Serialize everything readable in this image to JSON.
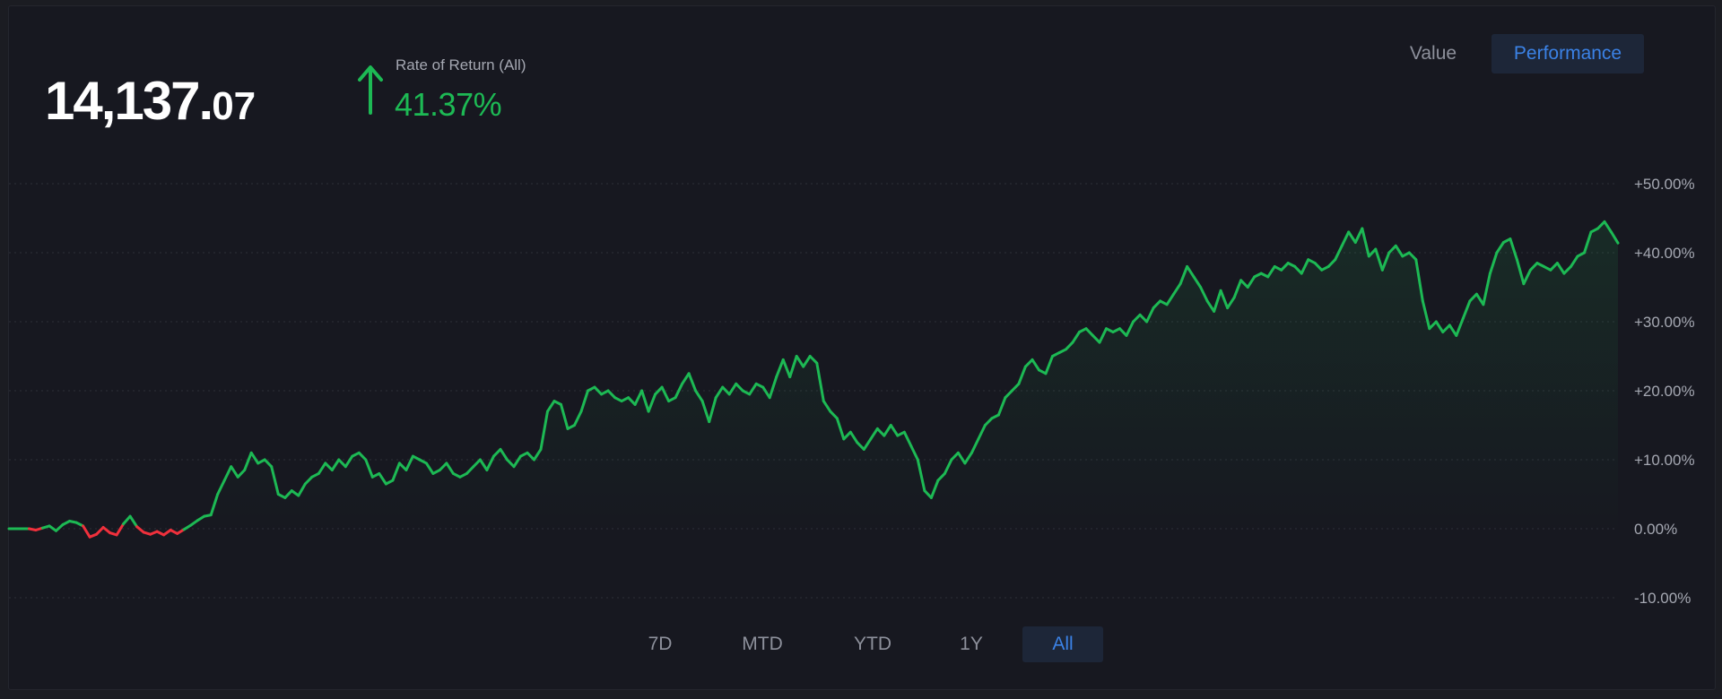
{
  "header": {
    "value_int": "14,137.",
    "value_dec": "07",
    "ror_label": "Rate of Return (All)",
    "ror_value": "41.37%",
    "trend": "up"
  },
  "view_toggle": {
    "value_label": "Value",
    "performance_label": "Performance",
    "selected": "Performance"
  },
  "ranges": {
    "d7": "7D",
    "mtd": "MTD",
    "ytd": "YTD",
    "y1": "1Y",
    "all": "All",
    "selected": "All"
  },
  "colors": {
    "positive": "#1db954",
    "negative": "#f0303c",
    "accent": "#3b82e6",
    "background": "#171820",
    "gridline": "#2e3039",
    "tick_text": "#a5a8b2"
  },
  "chart_data": {
    "type": "area",
    "title": "",
    "xlabel": "",
    "ylabel": "",
    "y_unit": "%",
    "ylim": [
      -10,
      50
    ],
    "y_ticks": [
      "+50.00%",
      "+40.00%",
      "+30.00%",
      "+20.00%",
      "+10.00%",
      "0.00%",
      "-10.00%"
    ],
    "y_tick_values": [
      50,
      40,
      30,
      20,
      10,
      0,
      -10
    ],
    "grid": true,
    "grid_style": "dotted",
    "axis_position": "right",
    "baseline": 0,
    "series": [
      {
        "values": [
          0,
          0,
          0,
          0,
          -0.2,
          0.1,
          0.4,
          -0.3,
          0.6,
          1.1,
          0.9,
          0.4,
          -1.2,
          -0.8,
          0.2,
          -0.6,
          -0.9,
          0.7,
          1.8,
          0.3,
          -0.5,
          -0.8,
          -0.4,
          -0.9,
          -0.2,
          -0.7,
          -0.1,
          0.5,
          1.2,
          1.8,
          2.0,
          5.0,
          7.0,
          9.0,
          7.5,
          8.5,
          11.0,
          9.5,
          10.0,
          9.0,
          5.0,
          4.5,
          5.5,
          4.8,
          6.5,
          7.5,
          8.0,
          9.5,
          8.5,
          10.0,
          9.0,
          10.5,
          11.0,
          10.0,
          7.5,
          8.0,
          6.5,
          7.0,
          9.5,
          8.5,
          10.5,
          10.0,
          9.5,
          8.0,
          8.5,
          9.5,
          8.0,
          7.5,
          8.0,
          9.0,
          10.0,
          8.5,
          10.5,
          11.5,
          10.0,
          9.0,
          10.5,
          11.0,
          10.0,
          11.5,
          17.0,
          18.5,
          18.0,
          14.5,
          15.0,
          17.0,
          20.0,
          20.5,
          19.5,
          20.0,
          19.0,
          18.5,
          19.0,
          18.0,
          20.0,
          17.0,
          19.5,
          20.5,
          18.5,
          19.0,
          21.0,
          22.5,
          20.0,
          18.5,
          15.5,
          19.0,
          20.5,
          19.5,
          21.0,
          20.0,
          19.5,
          21.0,
          20.5,
          19.0,
          22.0,
          24.5,
          22.0,
          25.0,
          23.5,
          25.0,
          24.0,
          18.5,
          17.0,
          16.0,
          13.0,
          14.0,
          12.5,
          11.5,
          13.0,
          14.5,
          13.5,
          15.0,
          13.5,
          14.0,
          12.0,
          10.0,
          5.5,
          4.5,
          7.0,
          8.0,
          10.0,
          11.0,
          9.5,
          11.0,
          13.0,
          15.0,
          16.0,
          16.5,
          19.0,
          20.0,
          21.0,
          23.5,
          24.5,
          23.0,
          22.5,
          25.0,
          25.5,
          26.0,
          27.0,
          28.5,
          29.0,
          28.0,
          27.0,
          29.0,
          28.5,
          29.0,
          28.0,
          30.0,
          31.0,
          30.0,
          32.0,
          33.0,
          32.5,
          34.0,
          35.5,
          38.0,
          36.5,
          35.0,
          33.0,
          31.5,
          34.5,
          32.0,
          33.5,
          36.0,
          35.0,
          36.5,
          37.0,
          36.5,
          38.0,
          37.5,
          38.5,
          38.0,
          37.0,
          39.0,
          38.5,
          37.5,
          38.0,
          39.0,
          41.0,
          43.0,
          41.5,
          43.5,
          39.5,
          40.5,
          37.5,
          40.0,
          41.0,
          39.5,
          40.0,
          39.0,
          33.0,
          29.0,
          30.0,
          28.5,
          29.5,
          28.0,
          30.5,
          33.0,
          34.0,
          32.5,
          37.0,
          40.0,
          41.5,
          42.0,
          39.0,
          35.5,
          37.5,
          38.5,
          38.0,
          37.5,
          38.5,
          37.0,
          38.0,
          39.5,
          40.0,
          43.0,
          43.5,
          44.5,
          43.0,
          41.4
        ]
      }
    ]
  }
}
